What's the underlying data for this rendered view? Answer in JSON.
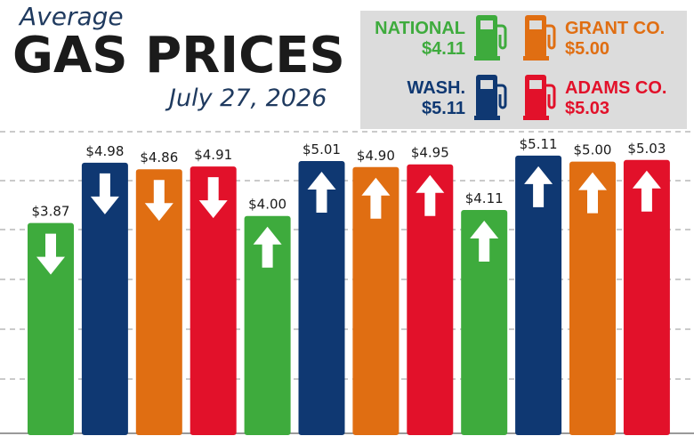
{
  "header": {
    "kicker": "Average",
    "title": "GAS PRICES",
    "date": "July 27, 2026"
  },
  "legend": [
    {
      "name": "NATIONAL",
      "price": "$4.11",
      "color": "#3eab3d",
      "icon": "gas-pump-icon"
    },
    {
      "name": "GRANT CO.",
      "price": "$5.00",
      "color": "#e06e12",
      "icon": "gas-pump-icon"
    },
    {
      "name": "WASH.",
      "price": "$5.11",
      "color": "#0f3872",
      "icon": "gas-pump-icon"
    },
    {
      "name": "ADAMS CO.",
      "price": "$5.03",
      "color": "#e2112a",
      "icon": "gas-pump-icon"
    }
  ],
  "chart_data": {
    "type": "bar",
    "ylim": [
      0,
      5.6
    ],
    "grid": true,
    "categories": [],
    "values": [
      3.87,
      4.98,
      4.86,
      4.91,
      4.0,
      5.01,
      4.9,
      4.95,
      4.11,
      5.11,
      5.0,
      5.03
    ],
    "labels": [
      "$3.87",
      "$4.98",
      "$4.86",
      "$4.91",
      "$4.00",
      "$5.01",
      "$4.90",
      "$4.95",
      "$4.11",
      "$5.11",
      "$5.00",
      "$5.03"
    ],
    "series_of_bar": [
      "NATIONAL",
      "WASH.",
      "GRANT CO.",
      "ADAMS CO.",
      "NATIONAL",
      "WASH.",
      "GRANT CO.",
      "ADAMS CO.",
      "NATIONAL",
      "WASH.",
      "GRANT CO.",
      "ADAMS CO."
    ],
    "direction": [
      "down",
      "down",
      "down",
      "down",
      "up",
      "up",
      "up",
      "up",
      "up",
      "up",
      "up",
      "up"
    ],
    "colors": {
      "NATIONAL": "#3eab3d",
      "WASH.": "#0f3872",
      "GRANT CO.": "#e06e12",
      "ADAMS CO.": "#e2112a"
    }
  }
}
